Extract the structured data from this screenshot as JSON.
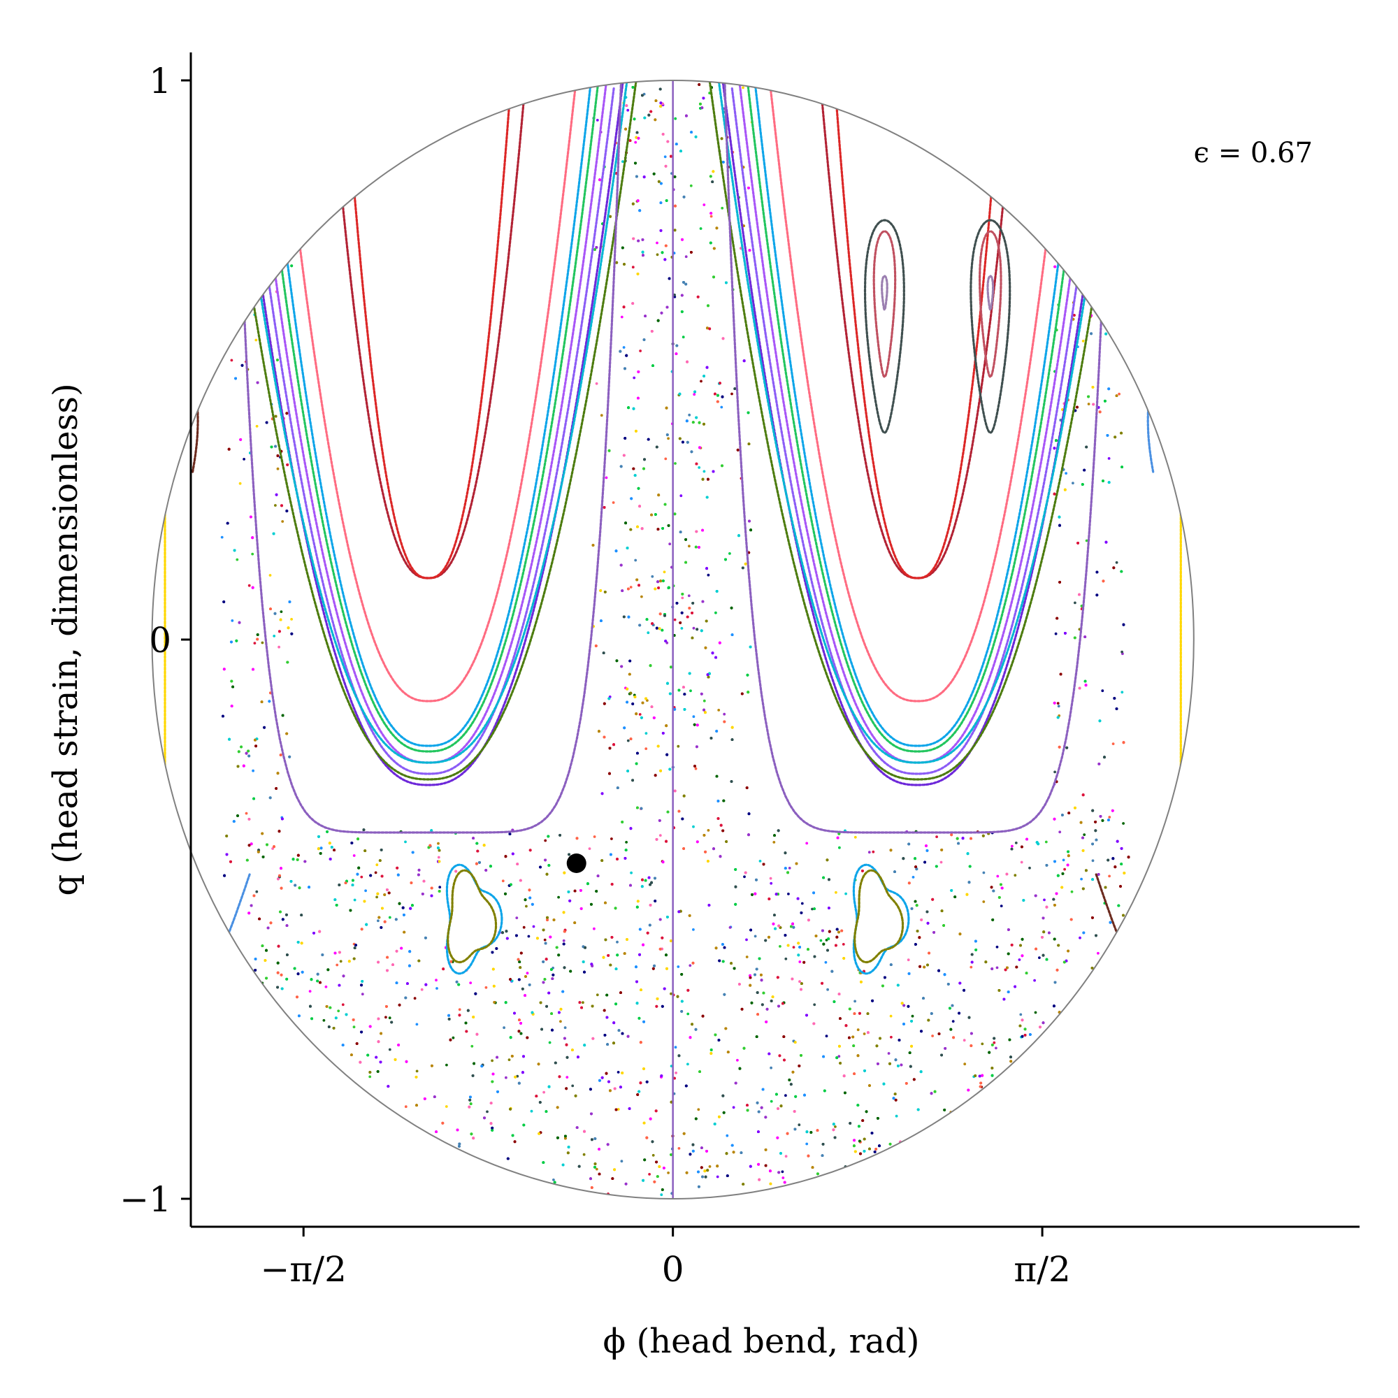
{
  "chart_data": {
    "type": "scatter",
    "title": "",
    "xlabel": "ϕ (head bend, rad)",
    "ylabel": "q (head strain, dimensionless)",
    "xlim": [
      -2.05,
      2.92
    ],
    "ylim": [
      -1.05,
      1.05
    ],
    "x_ticks": [
      {
        "value": -1.5708,
        "label": "−π/2"
      },
      {
        "value": 0,
        "label": "0"
      },
      {
        "value": 1.5708,
        "label": "π/2"
      }
    ],
    "y_ticks": [
      {
        "value": 1,
        "label": "1"
      },
      {
        "value": 0,
        "label": "0"
      },
      {
        "value": -1,
        "label": "−1"
      }
    ],
    "grid": false,
    "legend": "none",
    "annotation": "ϵ = 0.67",
    "boundary": {
      "shape": "ellipse",
      "center_x": 0,
      "center_y": 0,
      "radius_x": 2.215,
      "radius_y": 1.0,
      "color": "#808080"
    },
    "marked_point": {
      "x": -0.41,
      "y": -0.4,
      "color": "#000000"
    },
    "axis_color": "#000000",
    "series_colors": [
      "#ff00ff",
      "#7f00ff",
      "#00cc44",
      "#ffd700",
      "#1e90ff",
      "#00ced1",
      "#808000",
      "#8b0000",
      "#2f4f4f",
      "#ff6347",
      "#ff69b4",
      "#32cd32",
      "#006400",
      "#9932cc",
      "#dc143c",
      "#4682b4",
      "#b8860b",
      "#000080"
    ],
    "orbits": [
      {
        "type": "u-curve",
        "cx": 1.04,
        "ybot": 0.11,
        "w": 0.34,
        "k": 1.1,
        "color": "#b22234"
      },
      {
        "type": "u-curve",
        "cx": 1.04,
        "ybot": -0.11,
        "w": 0.45,
        "k": 1.0,
        "color": "#ff6b81"
      },
      {
        "type": "u-curve",
        "cx": 1.04,
        "ybot": -0.2,
        "w": 0.5,
        "k": 1.0,
        "color": "#22c55e"
      },
      {
        "type": "u-curve",
        "cx": 1.04,
        "ybot": -0.22,
        "w": 0.52,
        "k": 1.0,
        "color": "#a855f7"
      },
      {
        "type": "u-curve",
        "cx": 1.04,
        "ybot": -0.24,
        "w": 0.54,
        "k": 1.0,
        "color": "#8b5cf6"
      },
      {
        "type": "u-curve",
        "cx": 1.04,
        "ybot": -0.26,
        "w": 0.56,
        "k": 1.0,
        "color": "#6d28d9"
      },
      {
        "type": "u-curve",
        "cx": 1.04,
        "ybot": -0.19,
        "w": 0.49,
        "k": 1.05,
        "color": "#0ea5e9"
      },
      {
        "type": "u-curve",
        "cx": 1.04,
        "ybot": -0.25,
        "w": 0.6,
        "k": 1.0,
        "color": "#4d7c0f"
      },
      {
        "type": "u-curve",
        "cx": 1.04,
        "ybot": -0.22,
        "w": 0.58,
        "k": 1.0,
        "color": "#06b6d4"
      },
      {
        "type": "u-curve",
        "cx": 1.04,
        "ybot": 0.11,
        "w": 0.3,
        "k": 1.2,
        "color": "#dc2626"
      },
      {
        "type": "channel-u",
        "depth": -0.345,
        "color": "#8b5fbf"
      },
      {
        "type": "loop",
        "cx": 0.9,
        "cy": 0.56,
        "rx": 0.11,
        "ry": 0.19,
        "color": "#3f4f4f"
      },
      {
        "type": "loop",
        "cx": 0.9,
        "cy": 0.6,
        "rx": 0.06,
        "ry": 0.13,
        "color": "#c05060"
      },
      {
        "type": "loop",
        "cx": 0.9,
        "cy": 0.62,
        "rx": 0.015,
        "ry": 0.03,
        "color": "#9b7fb0"
      },
      {
        "type": "loop",
        "cx": 1.35,
        "cy": 0.56,
        "rx": 0.11,
        "ry": 0.19,
        "color": "#3f4f4f"
      },
      {
        "type": "loop",
        "cx": 1.35,
        "cy": 0.6,
        "rx": 0.06,
        "ry": 0.13,
        "color": "#c05060"
      },
      {
        "type": "loop",
        "cx": 1.35,
        "cy": 0.62,
        "rx": 0.015,
        "ry": 0.03,
        "color": "#9b7fb0"
      },
      {
        "type": "island",
        "cx": -0.865,
        "cy": -0.5,
        "color": "#0ea5e9"
      },
      {
        "type": "island",
        "cx": 0.865,
        "cy": -0.5,
        "color": "#0ea5e9"
      }
    ]
  }
}
